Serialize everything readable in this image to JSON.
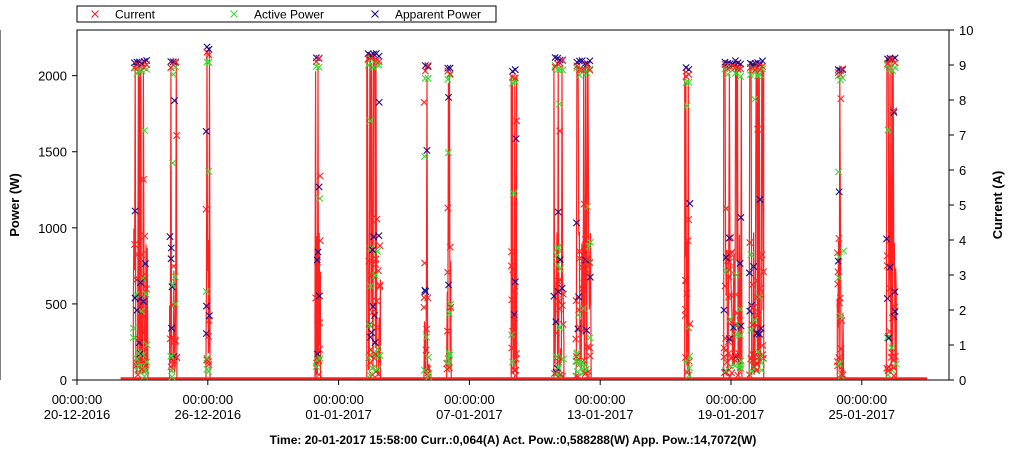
{
  "chart_data": {
    "type": "line",
    "legend": {
      "position": "top-left",
      "items": [
        {
          "label": "Current",
          "color": "#ff2020",
          "marker": "x"
        },
        {
          "label": "Active Power",
          "color": "#33dd33",
          "marker": "x"
        },
        {
          "label": "Apparent Power",
          "color": "#1a0a8c",
          "marker": "x"
        }
      ]
    },
    "y_left": {
      "label": "Power (W)",
      "ticks": [
        0,
        500,
        1000,
        1500,
        2000
      ],
      "range": [
        0,
        2300
      ]
    },
    "y_right": {
      "label": "Current (A)",
      "ticks": [
        0,
        1,
        2,
        3,
        4,
        5,
        6,
        7,
        8,
        9,
        10
      ],
      "range": [
        0,
        10
      ]
    },
    "x_axis": {
      "range": [
        "2016-12-20",
        "2017-01-29"
      ],
      "ticks": [
        {
          "date": "2016-12-20",
          "time": "00:00:00",
          "label": "20-12-2016"
        },
        {
          "date": "2016-12-26",
          "time": "00:00:00",
          "label": "26-12-2016"
        },
        {
          "date": "2017-01-01",
          "time": "00:00:00",
          "label": "01-01-2017"
        },
        {
          "date": "2017-01-07",
          "time": "00:00:00",
          "label": "07-01-2017"
        },
        {
          "date": "2017-01-13",
          "time": "00:00:00",
          "label": "13-01-2017"
        },
        {
          "date": "2017-01-19",
          "time": "00:00:00",
          "label": "19-01-2017"
        },
        {
          "date": "2017-01-25",
          "time": "00:00:00",
          "label": "25-01-2017"
        }
      ]
    },
    "cursor": {
      "date": "2017-01-20",
      "time": "15:58:00"
    },
    "data_start": "2016-12-22",
    "data_end": "2017-01-28",
    "active_periods": [
      {
        "start": "2016-12-22 14:00",
        "end": "2016-12-23 06:00",
        "peak_w": 2100
      },
      {
        "start": "2016-12-24 06:00",
        "end": "2016-12-24 14:00",
        "peak_w": 2110
      },
      {
        "start": "2016-12-25 22:00",
        "end": "2016-12-26 02:00",
        "peak_w": 2190
      },
      {
        "start": "2016-12-30 22:00",
        "end": "2016-12-31 04:00",
        "peak_w": 2130
      },
      {
        "start": "2017-01-02 07:00",
        "end": "2017-01-02 22:00",
        "peak_w": 2150
      },
      {
        "start": "2017-01-04 22:00",
        "end": "2017-01-05 04:00",
        "peak_w": 2080
      },
      {
        "start": "2017-01-05 23:00",
        "end": "2017-01-06 04:00",
        "peak_w": 2050
      },
      {
        "start": "2017-01-08 22:00",
        "end": "2017-01-09 04:00",
        "peak_w": 2040
      },
      {
        "start": "2017-01-10 21:00",
        "end": "2017-01-11 08:00",
        "peak_w": 2120
      },
      {
        "start": "2017-01-11 21:00",
        "end": "2017-01-12 14:00",
        "peak_w": 2100
      },
      {
        "start": "2017-01-16 21:00",
        "end": "2017-01-17 03:00",
        "peak_w": 2060
      },
      {
        "start": "2017-01-18 16:00",
        "end": "2017-01-19 12:00",
        "peak_w": 2100
      },
      {
        "start": "2017-01-19 20:00",
        "end": "2017-01-20 12:00",
        "peak_w": 2100
      },
      {
        "start": "2017-01-23 21:00",
        "end": "2017-01-24 04:00",
        "peak_w": 2060
      },
      {
        "start": "2017-01-26 03:00",
        "end": "2017-01-26 14:00",
        "peak_w": 2130
      }
    ],
    "idle_level_w": 10,
    "grid": false
  },
  "status_bar": {
    "text": "Time: 20-01-2017 15:58:00 Curr.:0,064(A) Act. Pow.:0,588288(W) App. Pow.:14,7072(W)"
  }
}
